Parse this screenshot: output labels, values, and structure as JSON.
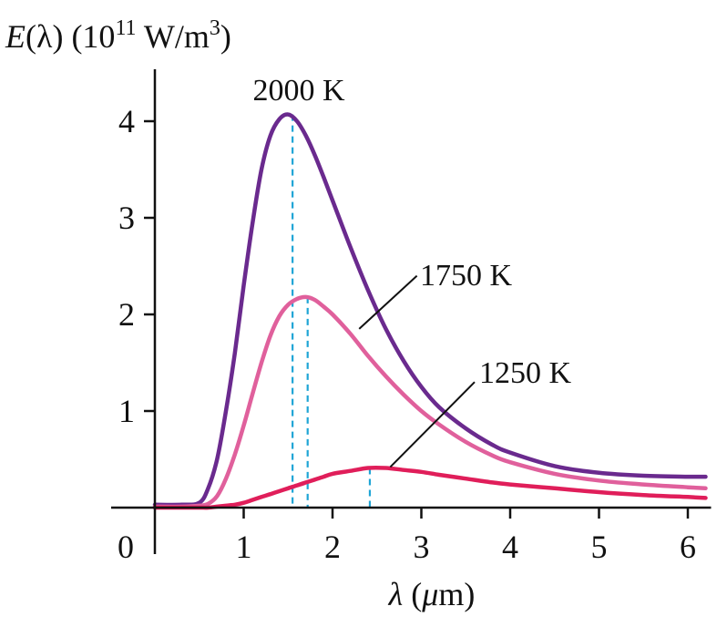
{
  "chart_data": {
    "type": "line",
    "ylabel": "E(λ) (10¹¹ W/m³)",
    "ylabel_parts": {
      "func": "E",
      "arg": "(λ)",
      "unit_open": " (10",
      "exp": "11",
      "unit_mid": " W/m",
      "exp2": "3",
      "unit_close": ")"
    },
    "xlabel": "λ (μm)",
    "xlabel_parts": {
      "sym": "λ",
      "unit_open": " (",
      "unit_mu": "μ",
      "unit_rest": "m)"
    },
    "xlim": [
      0,
      6.2
    ],
    "ylim": [
      0,
      4.5
    ],
    "x_ticks": [
      1,
      2,
      3,
      4,
      5,
      6
    ],
    "x_tick_labels": [
      "1",
      "2",
      "3",
      "4",
      "5",
      "6"
    ],
    "y_ticks": [
      1,
      2,
      3,
      4
    ],
    "y_tick_labels": [
      "1",
      "2",
      "3",
      "4"
    ],
    "origin_label": "0",
    "grid": false,
    "x": [
      0.0,
      0.3,
      0.5,
      0.6,
      0.7,
      0.8,
      0.9,
      1.0,
      1.1,
      1.2,
      1.3,
      1.4,
      1.5,
      1.6,
      1.7,
      1.8,
      1.9,
      2.0,
      2.2,
      2.4,
      2.6,
      2.8,
      3.0,
      3.2,
      3.5,
      3.8,
      4.0,
      4.5,
      5.0,
      5.5,
      6.0,
      6.2
    ],
    "series": [
      {
        "name": "2000 K",
        "color": "#6a2a8e",
        "peak_x": 1.55,
        "peak_y": 4.07,
        "values": [
          0.03,
          0.03,
          0.05,
          0.2,
          0.5,
          1.0,
          1.6,
          2.3,
          2.95,
          3.5,
          3.85,
          4.02,
          4.07,
          4.0,
          3.85,
          3.65,
          3.42,
          3.18,
          2.7,
          2.25,
          1.85,
          1.52,
          1.25,
          1.04,
          0.82,
          0.65,
          0.57,
          0.43,
          0.36,
          0.33,
          0.32,
          0.32
        ]
      },
      {
        "name": "1750 K",
        "color": "#e0609c",
        "peak_x": 1.72,
        "peak_y": 2.18,
        "values": [
          0.01,
          0.01,
          0.02,
          0.04,
          0.12,
          0.3,
          0.55,
          0.85,
          1.18,
          1.5,
          1.78,
          1.98,
          2.1,
          2.16,
          2.18,
          2.15,
          2.08,
          2.0,
          1.8,
          1.57,
          1.36,
          1.17,
          1.0,
          0.86,
          0.68,
          0.54,
          0.47,
          0.35,
          0.28,
          0.24,
          0.21,
          0.2
        ]
      },
      {
        "name": "1250 K",
        "color": "#e01e5a",
        "peak_x": 2.42,
        "peak_y": 0.41,
        "values": [
          0.0,
          0.0,
          0.0,
          0.0,
          0.01,
          0.02,
          0.03,
          0.05,
          0.08,
          0.11,
          0.14,
          0.17,
          0.2,
          0.23,
          0.26,
          0.29,
          0.32,
          0.35,
          0.38,
          0.41,
          0.41,
          0.39,
          0.37,
          0.34,
          0.3,
          0.26,
          0.24,
          0.2,
          0.16,
          0.13,
          0.11,
          0.1
        ]
      }
    ],
    "annotations": [
      {
        "text": "2000 K",
        "series": "2000 K",
        "leader": false
      },
      {
        "text": "1750 K",
        "series": "1750 K",
        "leader": true,
        "leader_from": [
          2.3,
          1.85
        ],
        "leader_to": [
          2.95,
          2.4
        ]
      },
      {
        "text": "1250 K",
        "series": "1250 K",
        "leader": true,
        "leader_from": [
          2.65,
          0.42
        ],
        "leader_to": [
          3.6,
          1.3
        ]
      }
    ],
    "peak_marker_color": "#1fa5d6"
  }
}
